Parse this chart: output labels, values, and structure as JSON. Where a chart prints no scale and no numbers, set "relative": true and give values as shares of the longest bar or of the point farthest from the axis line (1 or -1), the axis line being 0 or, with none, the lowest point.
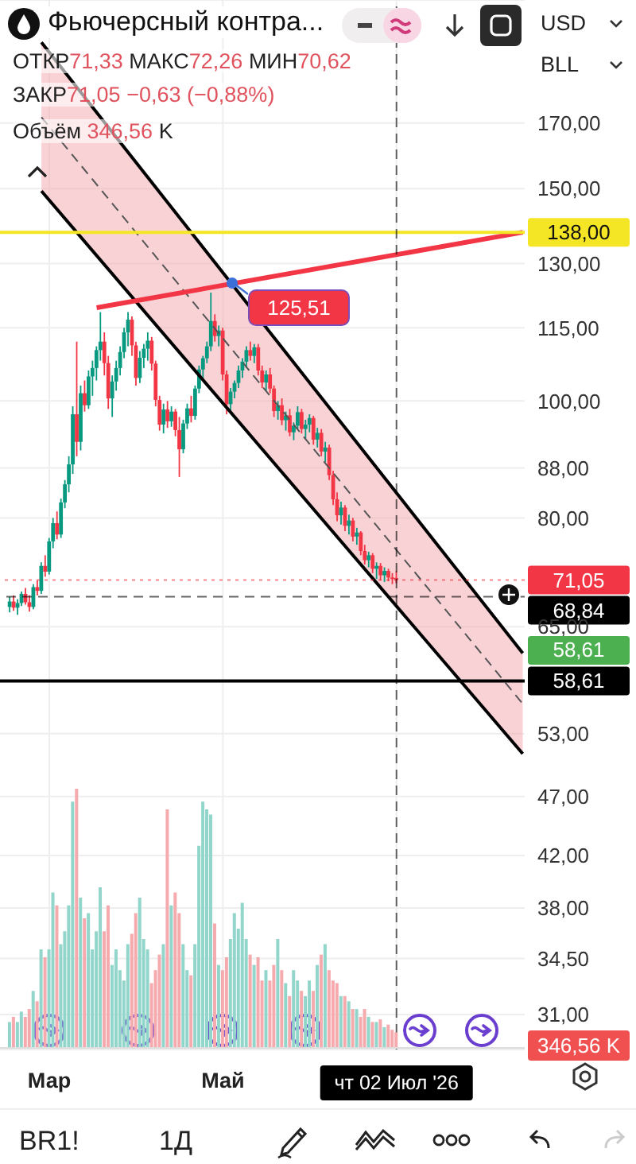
{
  "chart_data": [
    {
      "type": "candlestick",
      "title": "Фьючерсный контра...",
      "log": "y",
      "grid": true,
      "categories": [
        null,
        null,
        null,
        null,
        null,
        null,
        null,
        null,
        null,
        null,
        null,
        null,
        "Мар",
        null,
        null,
        null,
        null,
        null,
        null,
        null,
        null,
        null,
        null,
        null,
        null,
        null,
        null,
        null,
        null,
        null,
        null,
        null,
        null,
        null,
        null,
        null,
        null,
        null,
        null,
        null,
        null,
        null,
        null,
        null,
        null,
        null,
        null,
        null,
        null,
        null,
        null,
        null,
        null,
        null,
        null,
        null,
        "Май",
        null,
        null,
        null,
        null,
        null,
        null,
        null,
        null,
        null,
        null,
        null,
        null,
        null,
        null,
        null,
        null,
        null,
        null,
        null,
        null,
        null,
        null,
        null,
        null,
        null,
        null,
        null,
        null,
        null,
        null,
        null,
        null,
        null,
        null,
        null,
        null,
        null,
        null,
        null,
        null,
        null,
        null,
        null,
        "чт 02 Июл '26",
        null,
        null,
        null,
        null,
        null,
        null,
        null,
        null,
        null,
        null,
        null,
        null,
        null,
        null,
        null,
        null,
        null,
        null,
        null,
        null,
        null,
        null,
        null,
        null,
        null,
        null,
        null,
        null,
        null,
        null,
        null,
        null
      ],
      "ohlc": [
        null,
        null,
        [
          67.5,
          68.8,
          66.8,
          68.2
        ],
        [
          68.2,
          69,
          67,
          67.4
        ],
        [
          67.4,
          68.5,
          66.5,
          68
        ],
        [
          68,
          69.5,
          67.6,
          69.2
        ],
        [
          69.2,
          70,
          67.8,
          68.1
        ],
        [
          68.1,
          69,
          66.9,
          67.5
        ],
        [
          67.5,
          70.5,
          67.2,
          70.1
        ],
        [
          70.1,
          71,
          69,
          69.6
        ],
        [
          69.6,
          73.5,
          69.2,
          73
        ],
        [
          73,
          74.5,
          71.5,
          72.2
        ],
        [
          72.2,
          77,
          71.8,
          76.5
        ],
        [
          76.5,
          80,
          75.5,
          79.2
        ],
        [
          79.2,
          81,
          76.8,
          77.5
        ],
        [
          77.5,
          83,
          77,
          82.4
        ],
        [
          82.4,
          86,
          81.5,
          85.3
        ],
        [
          85.3,
          90,
          84,
          88.6
        ],
        [
          88.6,
          99,
          87,
          97.5
        ],
        [
          97.5,
          112,
          90,
          92.5
        ],
        [
          92.5,
          103,
          91,
          101.5
        ],
        [
          101.5,
          104,
          98,
          99.2
        ],
        [
          99.2,
          106,
          98.5,
          104.8
        ],
        [
          104.8,
          108,
          101,
          106.5
        ],
        [
          106.5,
          111,
          104,
          110.2
        ],
        [
          110.2,
          118.5,
          108,
          112
        ],
        [
          112,
          114,
          105,
          107.5
        ],
        [
          107.5,
          109,
          98.5,
          100.5
        ],
        [
          100.5,
          105,
          97,
          103.8
        ],
        [
          103.8,
          108,
          102,
          106.5
        ],
        [
          106.5,
          111,
          105,
          109.8
        ],
        [
          109.8,
          115,
          108.5,
          114
        ],
        [
          114,
          118.5,
          111,
          116.8
        ],
        [
          116.8,
          117.5,
          109,
          111.2
        ],
        [
          111.2,
          112,
          103,
          104.5
        ],
        [
          104.5,
          110,
          103.5,
          108.6
        ],
        [
          108.6,
          111.5,
          106.5,
          110.5
        ],
        [
          110.5,
          114,
          108,
          112.2
        ],
        [
          112.2,
          113,
          106,
          107.4
        ],
        [
          107.4,
          108,
          99,
          100.2
        ],
        [
          100.2,
          101,
          94.5,
          95.6
        ],
        [
          95.6,
          99.5,
          94,
          98.4
        ],
        [
          98.4,
          100,
          95,
          96.2
        ],
        [
          96.2,
          99,
          95.2,
          98
        ],
        [
          98,
          98.5,
          93.5,
          94.6
        ],
        [
          94.6,
          97,
          86.5,
          91.2
        ],
        [
          91.2,
          96.5,
          90.5,
          95.8
        ],
        [
          95.8,
          99.5,
          94.8,
          98.6
        ],
        [
          98.6,
          101,
          96,
          97.2
        ],
        [
          97.2,
          103,
          96.5,
          102.4
        ],
        [
          102.4,
          107,
          101.5,
          106.2
        ],
        [
          106.2,
          109,
          104,
          108.5
        ],
        [
          108.5,
          112,
          107.5,
          111
        ],
        [
          111,
          123,
          110,
          116.5
        ],
        [
          116.5,
          118,
          112,
          113.2
        ],
        [
          113.2,
          115.5,
          111,
          114.4
        ],
        [
          114.4,
          115,
          104,
          105.2
        ],
        [
          105.2,
          106,
          97.5,
          99.4
        ],
        [
          99.4,
          102.5,
          98,
          101.8
        ],
        [
          101.8,
          104,
          100.5,
          103.5
        ],
        [
          103.5,
          107,
          102.5,
          106
        ],
        [
          106,
          108.5,
          104.5,
          107.8
        ],
        [
          107.8,
          111,
          106.5,
          110.2
        ],
        [
          110.2,
          112,
          108,
          109
        ],
        [
          109,
          111.5,
          107.5,
          110.8
        ],
        [
          110.8,
          111.5,
          105,
          106
        ],
        [
          106,
          107,
          102.5,
          103.6
        ],
        [
          103.6,
          106,
          102,
          105.2
        ],
        [
          105.2,
          106.5,
          101.5,
          102.4
        ],
        [
          102.4,
          103,
          97,
          98.1
        ],
        [
          98.1,
          100,
          96.5,
          99.2
        ],
        [
          99.2,
          100.5,
          95.5,
          96.4
        ],
        [
          96.4,
          98,
          94.5,
          97.3
        ],
        [
          97.3,
          98.5,
          93.5,
          94.2
        ],
        [
          94.2,
          96,
          92.8,
          95.4
        ],
        [
          95.4,
          99,
          94.8,
          97.9
        ],
        [
          97.9,
          98.5,
          94,
          94.8
        ],
        [
          94.8,
          96.5,
          93,
          95.6
        ],
        [
          95.6,
          97.5,
          94.2,
          96.8
        ],
        [
          96.8,
          97.2,
          92,
          92.9
        ],
        [
          92.9,
          95,
          91.5,
          94.1
        ],
        [
          94.1,
          94.8,
          90,
          90.8
        ],
        [
          90.8,
          92.5,
          89,
          91.5
        ],
        [
          91.5,
          92,
          86,
          86.8
        ],
        [
          86.8,
          87.5,
          82,
          82.9
        ],
        [
          82.9,
          84,
          79.5,
          80.4
        ],
        [
          80.4,
          82.5,
          79,
          81.6
        ],
        [
          81.6,
          82,
          78,
          78.8
        ],
        [
          78.8,
          80.5,
          77.5,
          79.6
        ],
        [
          79.6,
          80,
          76.5,
          77.2
        ],
        [
          77.2,
          78.5,
          76,
          77.8
        ],
        [
          77.8,
          78,
          74.5,
          75.1
        ],
        [
          75.1,
          76,
          73.2,
          73.8
        ],
        [
          73.8,
          75,
          72.8,
          74.5
        ],
        [
          74.5,
          74.8,
          72,
          72.6
        ],
        [
          72.6,
          73.5,
          71.2,
          73
        ],
        [
          73,
          73.4,
          71,
          71.7
        ],
        [
          71.7,
          72.8,
          70.8,
          72.3
        ],
        [
          72.3,
          72.6,
          70.9,
          71.4
        ],
        [
          71.4,
          72,
          70.5,
          71.33
        ],
        [
          71.33,
          72.26,
          70.62,
          71.05
        ],
        null,
        null,
        null,
        null,
        null,
        null,
        null,
        null,
        null,
        null,
        null,
        null,
        null,
        null,
        null,
        null,
        null,
        null,
        null,
        null,
        null,
        null,
        null,
        null,
        null,
        null,
        null,
        null,
        null,
        null,
        null,
        null
      ],
      "colors": [
        null,
        null,
        "#089981",
        "#f23645",
        "#089981",
        "#089981",
        "#f23645",
        "#f23645",
        "#089981",
        "#f23645",
        "#089981",
        "#f23645",
        "#089981",
        "#089981",
        "#f23645",
        "#089981",
        "#089981",
        "#089981",
        "#089981",
        "#f23645",
        "#089981",
        "#f23645",
        "#089981",
        "#089981",
        "#089981",
        "#089981",
        "#f23645",
        "#f23645",
        "#089981",
        "#089981",
        "#089981",
        "#089981",
        "#089981",
        "#f23645",
        "#f23645",
        "#089981",
        "#089981",
        "#089981",
        "#f23645",
        "#f23645",
        "#f23645",
        "#089981",
        "#f23645",
        "#089981",
        "#f23645",
        "#f23645",
        "#089981",
        "#089981",
        "#f23645",
        "#089981",
        "#089981",
        "#089981",
        "#089981",
        "#089981",
        "#f23645",
        "#089981",
        "#f23645",
        "#f23645",
        "#089981",
        "#089981",
        "#089981",
        "#089981",
        "#089981",
        "#f23645",
        "#089981",
        "#f23645",
        "#f23645",
        "#089981",
        "#f23645",
        "#f23645",
        "#089981",
        "#f23645",
        "#089981",
        "#f23645",
        "#089981",
        "#089981",
        "#f23645",
        "#089981",
        "#089981",
        "#f23645",
        "#089981",
        "#f23645",
        "#089981",
        "#f23645",
        "#f23645",
        "#f23645",
        "#089981",
        "#f23645",
        "#089981",
        "#f23645",
        "#089981",
        "#f23645",
        "#f23645",
        "#089981",
        "#f23645",
        "#089981",
        "#f23645",
        "#089981",
        "#f23645",
        "#f23645",
        "#f23645",
        null,
        null,
        null,
        null,
        null,
        null,
        null,
        null,
        null,
        null,
        null,
        null,
        null,
        null,
        null,
        null,
        null,
        null,
        null,
        null,
        null,
        null,
        null,
        null,
        null,
        null,
        null,
        null,
        null,
        null,
        null,
        null
      ],
      "series": [
        {
          "type": "line",
          "color": "#555555",
          "line_style": "dashed",
          "values": [
            null,
            null,
            null,
            null,
            null,
            null,
            null,
            null,
            null,
            null,
            171.9,
            null,
            null,
            null,
            null,
            null,
            null,
            null,
            null,
            null,
            null,
            null,
            null,
            null,
            null,
            null,
            null,
            null,
            null,
            null,
            null,
            null,
            null,
            null,
            null,
            null,
            null,
            null,
            null,
            null,
            null,
            null,
            null,
            null,
            null,
            null,
            null,
            null,
            null,
            null,
            null,
            null,
            null,
            null,
            null,
            null,
            null,
            null,
            null,
            null,
            null,
            null,
            null,
            null,
            null,
            null,
            null,
            null,
            null,
            null,
            null,
            null,
            null,
            null,
            null,
            null,
            null,
            null,
            null,
            null,
            null,
            null,
            null,
            null,
            null,
            null,
            null,
            null,
            null,
            null,
            null,
            null,
            null,
            null,
            null,
            null,
            null,
            null,
            null,
            null,
            null,
            null,
            null,
            null,
            null,
            null,
            null,
            null,
            null,
            null,
            null,
            null,
            null,
            null,
            null,
            null,
            null,
            null,
            null,
            null,
            null,
            null,
            null,
            null,
            null,
            null,
            null,
            null,
            null,
            null,
            null,
            null,
            56.1
          ],
          "lower": [
            null,
            null,
            null,
            null,
            null,
            null,
            null,
            null,
            null,
            null,
            149.3,
            null,
            null,
            null,
            null,
            null,
            null,
            null,
            null,
            null,
            null,
            null,
            null,
            null,
            null,
            null,
            null,
            null,
            null,
            null,
            null,
            null,
            null,
            null,
            null,
            null,
            null,
            null,
            null,
            null,
            null,
            null,
            null,
            null,
            null,
            null,
            null,
            null,
            null,
            null,
            null,
            null,
            null,
            null,
            null,
            null,
            null,
            null,
            null,
            null,
            null,
            null,
            null,
            null,
            null,
            null,
            null,
            null,
            null,
            null,
            null,
            null,
            null,
            null,
            null,
            null,
            null,
            null,
            null,
            null,
            null,
            null,
            null,
            null,
            null,
            null,
            null,
            null,
            null,
            null,
            null,
            null,
            null,
            null,
            null,
            null,
            null,
            null,
            null,
            null,
            null,
            null,
            null,
            null,
            null,
            null,
            null,
            null,
            null,
            null,
            null,
            null,
            null,
            null,
            null,
            null,
            null,
            null,
            null,
            null,
            null,
            null,
            null,
            null,
            null,
            null,
            null,
            null,
            null,
            null,
            null,
            null,
            51
          ],
          "upper": [
            null,
            null,
            null,
            null,
            null,
            null,
            null,
            null,
            null,
            null,
            198.3,
            null,
            null,
            null,
            null,
            null,
            null,
            null,
            null,
            null,
            null,
            null,
            null,
            null,
            null,
            null,
            null,
            null,
            null,
            null,
            null,
            null,
            null,
            null,
            null,
            null,
            null,
            null,
            null,
            null,
            null,
            null,
            null,
            null,
            null,
            null,
            null,
            null,
            null,
            null,
            null,
            null,
            null,
            null,
            null,
            null,
            null,
            null,
            null,
            null,
            null,
            null,
            null,
            null,
            null,
            null,
            null,
            null,
            null,
            null,
            null,
            null,
            null,
            null,
            null,
            null,
            null,
            null,
            null,
            null,
            null,
            null,
            null,
            null,
            null,
            null,
            null,
            null,
            null,
            null,
            null,
            null,
            null,
            null,
            null,
            null,
            null,
            null,
            null,
            null,
            null,
            null,
            null,
            null,
            null,
            null,
            null,
            null,
            null,
            null,
            null,
            null,
            null,
            null,
            null,
            null,
            null,
            null,
            null,
            null,
            null,
            null,
            null,
            null,
            null,
            null,
            null,
            null,
            null,
            null,
            null,
            null,
            61.8
          ]
        },
        {
          "type": "line",
          "color": "#000000",
          "line_style": "solid",
          "values": [
            null,
            null,
            null,
            null,
            null,
            null,
            null,
            null,
            null,
            null,
            198.3,
            null,
            null,
            null,
            null,
            null,
            null,
            null,
            null,
            null,
            null,
            null,
            null,
            null,
            null,
            null,
            null,
            null,
            null,
            null,
            null,
            null,
            null,
            null,
            null,
            null,
            null,
            null,
            null,
            null,
            null,
            null,
            null,
            null,
            null,
            null,
            null,
            null,
            null,
            null,
            null,
            null,
            null,
            null,
            null,
            null,
            null,
            null,
            null,
            null,
            null,
            null,
            null,
            null,
            null,
            null,
            null,
            null,
            null,
            null,
            null,
            null,
            null,
            null,
            null,
            null,
            null,
            null,
            null,
            null,
            null,
            null,
            null,
            null,
            null,
            null,
            null,
            null,
            null,
            null,
            null,
            null,
            null,
            null,
            null,
            null,
            null,
            null,
            null,
            null,
            null,
            null,
            null,
            null,
            null,
            null,
            null,
            null,
            null,
            null,
            null,
            null,
            null,
            null,
            null,
            null,
            null,
            null,
            null,
            null,
            null,
            null,
            null,
            null,
            null,
            null,
            null,
            null,
            null,
            null,
            null,
            null,
            61.8
          ]
        },
        {
          "type": "line",
          "color": "#000000",
          "line_style": "solid",
          "values": [
            null,
            null,
            null,
            null,
            null,
            null,
            null,
            null,
            null,
            null,
            149.3,
            null,
            null,
            null,
            null,
            null,
            null,
            null,
            null,
            null,
            null,
            null,
            null,
            null,
            null,
            null,
            null,
            null,
            null,
            null,
            null,
            null,
            null,
            null,
            null,
            null,
            null,
            null,
            null,
            null,
            null,
            null,
            null,
            null,
            null,
            null,
            null,
            null,
            null,
            null,
            null,
            null,
            null,
            null,
            null,
            null,
            null,
            null,
            null,
            null,
            null,
            null,
            null,
            null,
            null,
            null,
            null,
            null,
            null,
            null,
            null,
            null,
            null,
            null,
            null,
            null,
            null,
            null,
            null,
            null,
            null,
            null,
            null,
            null,
            null,
            null,
            null,
            null,
            null,
            null,
            null,
            null,
            null,
            null,
            null,
            null,
            null,
            null,
            null,
            null,
            null,
            null,
            null,
            null,
            null,
            null,
            null,
            null,
            null,
            null,
            null,
            null,
            null,
            null,
            null,
            null,
            null,
            null,
            null,
            null,
            null,
            null,
            null,
            null,
            null,
            null,
            null,
            null,
            null,
            null,
            null,
            null,
            51
          ]
        },
        {
          "type": "line",
          "color": "#f23645",
          "line_style": "solid",
          "values": [
            null,
            null,
            null,
            null,
            null,
            null,
            null,
            null,
            null,
            null,
            null,
            null,
            null,
            null,
            null,
            null,
            null,
            null,
            null,
            null,
            null,
            null,
            null,
            null,
            119.5,
            null,
            null,
            null,
            null,
            null,
            null,
            null,
            null,
            null,
            null,
            null,
            null,
            null,
            null,
            null,
            null,
            null,
            null,
            null,
            null,
            null,
            null,
            null,
            null,
            null,
            null,
            null,
            null,
            null,
            null,
            null,
            null,
            null,
            null,
            null,
            null,
            null,
            null,
            null,
            null,
            null,
            null,
            null,
            null,
            null,
            null,
            null,
            null,
            null,
            null,
            null,
            null,
            null,
            null,
            null,
            null,
            null,
            null,
            null,
            null,
            null,
            null,
            null,
            null,
            null,
            null,
            null,
            null,
            null,
            null,
            null,
            null,
            null,
            null,
            null,
            null,
            null,
            null,
            null,
            null,
            null,
            null,
            null,
            null,
            null,
            null,
            null,
            null,
            null,
            null,
            null,
            null,
            null,
            null,
            null,
            null,
            null,
            null,
            null,
            null,
            null,
            null,
            null,
            null,
            null,
            null,
            null,
            138
          ]
        }
      ],
      "ylim": [
        29,
        215
      ],
      "yticks": [
        {
          "value": 31,
          "label": "31,00"
        },
        {
          "value": 34.5,
          "label": "34,50"
        },
        {
          "value": 38,
          "label": "38,00"
        },
        {
          "value": 42,
          "label": "42,00"
        },
        {
          "value": 47,
          "label": "47,00"
        },
        {
          "value": 53,
          "label": "53,00"
        },
        {
          "value": 65,
          "label": "65,00"
        },
        {
          "value": 80,
          "label": "80,00"
        },
        {
          "value": 88,
          "label": "88,00"
        },
        {
          "value": 100,
          "label": "100,00"
        },
        {
          "value": 115,
          "label": "115,00"
        },
        {
          "value": 130,
          "label": "130,00"
        },
        {
          "value": 150,
          "label": "150,00"
        },
        {
          "value": 170,
          "label": "170,00"
        }
      ],
      "ref_lines": [
        {
          "axis": "y",
          "value": 138,
          "label": "138,00",
          "color": "#f5e625",
          "line_style": "solid"
        },
        {
          "axis": "y",
          "value": 58.61,
          "label": "58,61",
          "color": "#000000",
          "line_style": "solid"
        },
        {
          "axis": "y",
          "value": 71.05,
          "label": "71,05",
          "color": "#f23645",
          "line_style": "dotted"
        },
        {
          "axis": "y",
          "value": 68.84,
          "label": "68,84",
          "color": "#000000",
          "line_style": "dashed"
        },
        {
          "axis": "x",
          "value": "чт 02 Июл '26",
          "color": "#000000",
          "line_style": "dashed"
        }
      ],
      "annotations": [
        "ОТКР71,33 МАКС72,26 МИН70,62",
        "ЗАКР71,05 −0,63 (−0,88%)",
        "Объём 346,56 K",
        "USD",
        "BLL",
        "BR1!",
        "1Д",
        "125,51",
        "58,61"
      ]
    },
    {
      "type": "bar",
      "relative": true,
      "stacked": true,
      "categories": [
        null,
        null,
        null,
        null,
        null,
        null,
        null,
        null,
        null,
        null,
        null,
        null,
        null,
        null,
        null,
        null,
        null,
        null,
        null,
        null,
        null,
        null,
        null,
        null,
        null,
        null,
        null,
        null,
        null,
        null,
        null,
        null,
        null,
        null,
        null,
        null,
        null,
        null,
        null,
        null,
        null,
        null,
        null,
        null,
        null,
        null,
        null,
        null,
        null,
        null,
        null,
        null,
        null,
        null,
        null,
        null,
        null,
        null,
        null,
        null,
        null,
        null,
        null,
        null,
        null,
        null,
        null,
        null,
        null,
        null,
        null,
        null,
        null,
        null,
        null,
        null,
        null,
        null,
        null,
        null,
        null,
        null,
        null,
        null,
        null,
        null,
        null,
        null,
        null,
        null,
        null,
        null,
        null,
        null,
        null,
        null,
        null,
        null,
        null,
        null,
        null,
        null,
        null,
        null,
        null,
        null,
        null,
        null,
        null,
        null,
        null,
        null,
        null,
        null,
        null,
        null,
        null,
        null,
        null,
        null,
        null,
        null,
        null,
        null,
        null,
        null,
        null,
        null,
        null,
        null,
        null,
        null,
        null
      ],
      "series": [
        {
          "color": "#92d5cb",
          "values": [
            null,
            null,
            0.1,
            null,
            0.1,
            0.14,
            null,
            null,
            0.22,
            null,
            0.38,
            null,
            0.38,
            0.6,
            null,
            0.4,
            0.45,
            0.55,
            0.95,
            null,
            0.58,
            null,
            0.52,
            0.38,
            0.45,
            0.62,
            null,
            null,
            0.32,
            0.38,
            0.3,
            0.26,
            0.4,
            null,
            null,
            0.58,
            0.42,
            0.38,
            null,
            null,
            null,
            0.4,
            null,
            0.55,
            null,
            null,
            0.4,
            0.3,
            null,
            0.4,
            0.78,
            0.95,
            0.92,
            0.9,
            null,
            0.32,
            null,
            null,
            0.42,
            0.52,
            0.46,
            0.56,
            0.42,
            null,
            0.32,
            null,
            null,
            0.3,
            null,
            null,
            0.42,
            null,
            0.25,
            null,
            0.3,
            0.26,
            null,
            0.2,
            0.26,
            null,
            0.32,
            null,
            0.4,
            null,
            null,
            null,
            0.2,
            null,
            0.18,
            null,
            0.15,
            null,
            null,
            0.12,
            null,
            0.1,
            null,
            0.08,
            null,
            null,
            null,
            null,
            null,
            null,
            null,
            null,
            null,
            null,
            null,
            null,
            null,
            null,
            null,
            null,
            null,
            null,
            null,
            null,
            null,
            null,
            null,
            null,
            null,
            null,
            null,
            null,
            null,
            null,
            null,
            null,
            null,
            null,
            null
          ]
        },
        {
          "color": "#f5aaae",
          "values": [
            null,
            null,
            null,
            0.12,
            null,
            null,
            0.12,
            0.15,
            null,
            0.18,
            null,
            0.35,
            null,
            null,
            0.55,
            null,
            null,
            null,
            null,
            1.0,
            null,
            0.5,
            null,
            null,
            null,
            null,
            0.45,
            0.55,
            null,
            null,
            null,
            null,
            null,
            0.44,
            0.52,
            null,
            null,
            null,
            0.25,
            0.3,
            0.36,
            null,
            0.92,
            null,
            0.6,
            0.52,
            null,
            null,
            0.28,
            null,
            null,
            null,
            null,
            null,
            0.48,
            null,
            0.3,
            0.35,
            null,
            null,
            null,
            null,
            null,
            0.36,
            null,
            0.35,
            0.26,
            null,
            0.26,
            0.32,
            null,
            0.3,
            null,
            0.2,
            null,
            null,
            0.22,
            null,
            null,
            0.22,
            null,
            0.36,
            null,
            0.3,
            0.26,
            0.25,
            null,
            0.2,
            null,
            0.15,
            null,
            0.12,
            0.15,
            null,
            0.1,
            null,
            0.11,
            null,
            0.09,
            0.07,
            0.06,
            null,
            null,
            null,
            null,
            null,
            null,
            null,
            null,
            null,
            null,
            null,
            null,
            null,
            null,
            null,
            null,
            null,
            null,
            null,
            null,
            null,
            null,
            null,
            null,
            null,
            null,
            null,
            null,
            null,
            null,
            null,
            null
          ]
        }
      ],
      "annotations": [
        "346,56 K"
      ]
    }
  ]
}
